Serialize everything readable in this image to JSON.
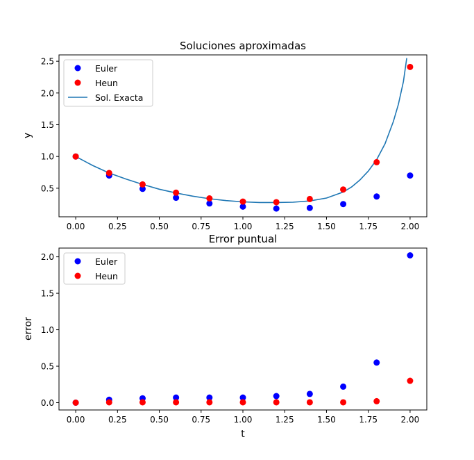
{
  "chart_data": [
    {
      "type": "scatter",
      "title": "Soluciones aproximadas",
      "xlabel": "",
      "ylabel": "y",
      "xlim": [
        -0.1,
        2.1
      ],
      "ylim": [
        0.05,
        2.6
      ],
      "xticks": [
        "0.00",
        "0.25",
        "0.50",
        "0.75",
        "1.00",
        "1.25",
        "1.50",
        "1.75",
        "2.00"
      ],
      "yticks": [
        "0.5",
        "1.0",
        "1.5",
        "2.0",
        "2.5"
      ],
      "legend_position": "top-left",
      "grid": false,
      "x": [
        0.0,
        0.2,
        0.4,
        0.6,
        0.8,
        1.0,
        1.2,
        1.4,
        1.6,
        1.8,
        2.0
      ],
      "series": [
        {
          "name": "Euler",
          "kind": "points",
          "color": "#0000ff",
          "values": [
            1.0,
            0.7,
            0.49,
            0.35,
            0.26,
            0.21,
            0.18,
            0.19,
            0.25,
            0.37,
            0.7
          ]
        },
        {
          "name": "Heun",
          "kind": "points",
          "color": "#ff0000",
          "values": [
            1.0,
            0.74,
            0.56,
            0.43,
            0.34,
            0.29,
            0.28,
            0.33,
            0.48,
            0.91,
            2.41
          ]
        },
        {
          "name": "Sol. Exacta",
          "kind": "line",
          "color": "#1f77b4",
          "x": [
            0.0,
            0.1,
            0.2,
            0.3,
            0.4,
            0.5,
            0.6,
            0.7,
            0.8,
            0.9,
            1.0,
            1.1,
            1.2,
            1.3,
            1.4,
            1.5,
            1.6,
            1.65,
            1.7,
            1.75,
            1.8,
            1.85,
            1.9,
            1.93,
            1.96,
            1.98
          ],
          "values": [
            1.0,
            0.86,
            0.74,
            0.645,
            0.56,
            0.485,
            0.425,
            0.375,
            0.335,
            0.305,
            0.285,
            0.275,
            0.275,
            0.28,
            0.3,
            0.345,
            0.44,
            0.52,
            0.63,
            0.77,
            0.95,
            1.2,
            1.55,
            1.82,
            2.18,
            2.55
          ]
        }
      ]
    },
    {
      "type": "scatter",
      "title": "Error puntual",
      "xlabel": "t",
      "ylabel": "error",
      "xlim": [
        -0.1,
        2.1
      ],
      "ylim": [
        -0.1,
        2.12
      ],
      "xticks": [
        "0.00",
        "0.25",
        "0.50",
        "0.75",
        "1.00",
        "1.25",
        "1.50",
        "1.75",
        "2.00"
      ],
      "yticks": [
        "0.0",
        "0.5",
        "1.0",
        "1.5",
        "2.0"
      ],
      "legend_position": "top-left",
      "grid": false,
      "x": [
        0.0,
        0.2,
        0.4,
        0.6,
        0.8,
        1.0,
        1.2,
        1.4,
        1.6,
        1.8,
        2.0
      ],
      "series": [
        {
          "name": "Euler",
          "kind": "points",
          "color": "#0000ff",
          "values": [
            0.0,
            0.04,
            0.06,
            0.07,
            0.07,
            0.07,
            0.09,
            0.12,
            0.22,
            0.55,
            2.02
          ]
        },
        {
          "name": "Heun",
          "kind": "points",
          "color": "#ff0000",
          "values": [
            0.0,
            0.005,
            0.005,
            0.005,
            0.005,
            0.005,
            0.005,
            0.005,
            0.005,
            0.02,
            0.3
          ]
        }
      ]
    }
  ]
}
